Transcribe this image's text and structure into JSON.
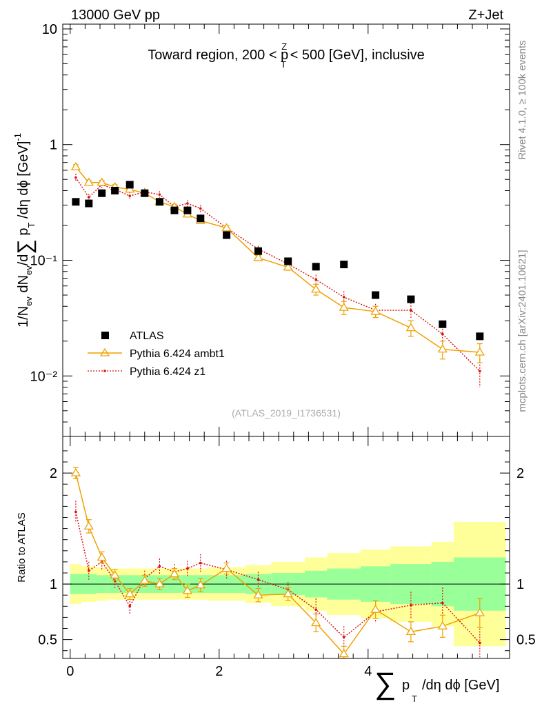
{
  "header": {
    "energy": "13000 GeV pp",
    "process": "Z+Jet",
    "rivet": "Rivet 4.1.0, ≥ 100k events",
    "mcplots": "mcplots.cern.ch [arXiv:2401.10621]",
    "analysis": "(ATLAS_2019_I1736531)"
  },
  "colors": {
    "data": "#000000",
    "ambt1": "#f0a000",
    "z1": "#dd1111",
    "band_inner": "#99ff99",
    "band_outer": "#ffff99"
  },
  "chart_data": [
    {
      "type": "scatter",
      "title": "Toward region, 200 < p_T^Z < 500 [GeV], inclusive",
      "title_parts": {
        "a": "Toward region, 200 < p",
        "sup": "Z",
        "sub": "T",
        "b": " < 500 [GeV], inclusive"
      },
      "ylabel": "1/N_ev dN_ev/d∑ p_T /dη dφ  [GeV]^-1",
      "yscale": "log",
      "ylim": [
        0.003,
        11
      ],
      "xlim": [
        -0.1,
        5.9
      ],
      "yticks": [
        {
          "v": 10,
          "label": "10"
        },
        {
          "v": 1,
          "label": "1"
        },
        {
          "v": 0.1,
          "label": "10⁻¹"
        },
        {
          "v": 0.01,
          "label": "10⁻²"
        }
      ],
      "x": [
        0.075,
        0.25,
        0.425,
        0.6,
        0.8,
        1.0,
        1.2,
        1.4,
        1.575,
        1.75,
        2.1,
        2.525,
        2.925,
        3.3,
        3.675,
        4.1,
        4.575,
        5.0,
        5.5
      ],
      "series": [
        {
          "name": "ATLAS",
          "style": "square",
          "values": [
            0.32,
            0.31,
            0.38,
            0.4,
            0.45,
            0.38,
            0.32,
            0.27,
            0.27,
            0.23,
            0.165,
            0.12,
            0.098,
            0.088,
            0.092,
            0.05,
            0.046,
            0.028,
            0.022
          ]
        },
        {
          "name": "Pythia 6.424 ambt1",
          "style": "triangle",
          "values": [
            0.64,
            0.47,
            0.47,
            0.43,
            0.41,
            0.38,
            0.32,
            0.29,
            0.25,
            0.22,
            0.19,
            0.105,
            0.087,
            0.056,
            0.039,
            0.036,
            0.026,
            0.017,
            0.016
          ],
          "errors": [
            0.03,
            0.02,
            0.02,
            0.02,
            0.02,
            0.02,
            0.015,
            0.015,
            0.013,
            0.012,
            0.009,
            0.005,
            0.005,
            0.006,
            0.005,
            0.004,
            0.004,
            0.003,
            0.003
          ]
        },
        {
          "name": "Pythia 6.424 z1",
          "style": "dot-dotted",
          "values": [
            0.52,
            0.35,
            0.45,
            0.41,
            0.36,
            0.39,
            0.37,
            0.29,
            0.31,
            0.28,
            0.19,
            0.125,
            0.093,
            0.068,
            0.048,
            0.037,
            0.037,
            0.023,
            0.011
          ],
          "errors": [
            0.04,
            0.025,
            0.03,
            0.03,
            0.03,
            0.03,
            0.025,
            0.02,
            0.02,
            0.02,
            0.012,
            0.008,
            0.006,
            0.007,
            0.006,
            0.005,
            0.006,
            0.004,
            0.003
          ]
        }
      ]
    },
    {
      "type": "scatter",
      "ylabel": "Ratio to ATLAS",
      "ylim": [
        0.33,
        2.33
      ],
      "xlim": [
        -0.1,
        5.9
      ],
      "xlabel": "∑ p_T /dη dφ [GeV]",
      "xticks": [
        {
          "v": 0,
          "label": "0"
        },
        {
          "v": 2,
          "label": "2"
        },
        {
          "v": 4,
          "label": "4"
        }
      ],
      "yticks": [
        {
          "v": 0.5,
          "label": "0.5"
        },
        {
          "v": 1,
          "label": "1"
        },
        {
          "v": 2,
          "label": "2"
        }
      ],
      "x": [
        0.075,
        0.25,
        0.425,
        0.6,
        0.8,
        1.0,
        1.2,
        1.4,
        1.575,
        1.75,
        2.1,
        2.525,
        2.925,
        3.3,
        3.675,
        4.1,
        4.575,
        5.0,
        5.5
      ],
      "bin_edges": [
        0.0,
        0.15,
        0.35,
        0.5,
        0.7,
        0.9,
        1.1,
        1.3,
        1.5,
        1.65,
        1.85,
        2.35,
        2.7,
        3.15,
        3.45,
        3.9,
        4.3,
        4.85,
        5.15,
        5.85
      ],
      "bands": {
        "inner": [
          0.09,
          0.09,
          0.08,
          0.08,
          0.08,
          0.08,
          0.08,
          0.08,
          0.08,
          0.08,
          0.08,
          0.09,
          0.1,
          0.12,
          0.14,
          0.16,
          0.18,
          0.2,
          0.24
        ],
        "outer": [
          0.18,
          0.16,
          0.15,
          0.14,
          0.14,
          0.14,
          0.14,
          0.14,
          0.14,
          0.14,
          0.15,
          0.17,
          0.2,
          0.24,
          0.28,
          0.31,
          0.34,
          0.38,
          0.56
        ]
      },
      "series": [
        {
          "name": "Pythia 6.424 ambt1",
          "style": "triangle",
          "values": [
            2.0,
            1.52,
            1.24,
            1.08,
            0.91,
            1.03,
            1.0,
            1.09,
            0.94,
            0.99,
            1.14,
            0.9,
            0.91,
            0.65,
            0.37,
            0.77,
            0.57,
            0.62,
            0.74
          ],
          "errors": [
            0.05,
            0.06,
            0.05,
            0.05,
            0.05,
            0.05,
            0.05,
            0.05,
            0.06,
            0.06,
            0.05,
            0.06,
            0.06,
            0.08,
            0.07,
            0.08,
            0.09,
            0.1,
            0.13
          ]
        },
        {
          "name": "Pythia 6.424 z1",
          "style": "dot-dotted",
          "values": [
            1.65,
            1.12,
            1.2,
            1.03,
            0.8,
            1.05,
            1.16,
            1.11,
            1.14,
            1.19,
            1.13,
            1.04,
            0.95,
            0.77,
            0.52,
            0.75,
            0.81,
            0.83,
            0.47
          ],
          "errors": [
            0.1,
            0.08,
            0.07,
            0.07,
            0.07,
            0.07,
            0.07,
            0.07,
            0.07,
            0.08,
            0.08,
            0.07,
            0.07,
            0.1,
            0.1,
            0.1,
            0.12,
            0.14,
            0.13
          ]
        }
      ]
    }
  ]
}
